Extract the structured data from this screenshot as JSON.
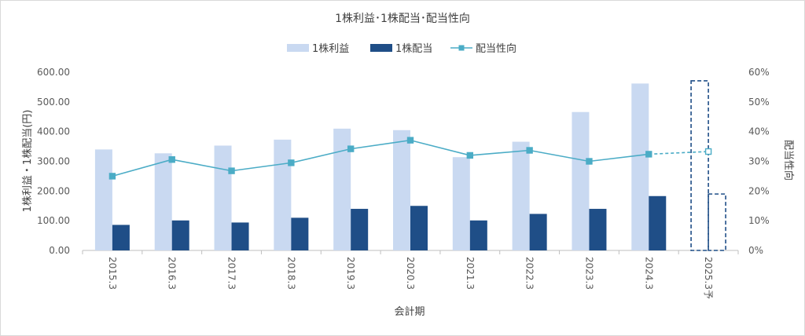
{
  "chart_data": {
    "type": "bar",
    "title": "1株利益･1株配当･配当性向",
    "xlabel": "会計期",
    "ylabel": "1株利益・1株配当(円)",
    "y2label": "配当性向",
    "categories": [
      "2015.3",
      "2016.3",
      "2017.3",
      "2018.3",
      "2019.3",
      "2020.3",
      "2021.3",
      "2022.3",
      "2023.3",
      "2024.3",
      "2025.3予"
    ],
    "ylim": [
      0,
      600
    ],
    "yticks": [
      "0.00",
      "100.00",
      "200.00",
      "300.00",
      "400.00",
      "500.00",
      "600.00"
    ],
    "y2lim": [
      0,
      60
    ],
    "y2ticks": [
      "0%",
      "10%",
      "20%",
      "30%",
      "40%",
      "50%",
      "60%"
    ],
    "series": [
      {
        "name": "1株利益",
        "kind": "bar",
        "color": "#c9d9f1",
        "values": [
          340,
          327,
          353,
          373,
          410,
          405,
          314,
          366,
          466,
          562,
          571
        ],
        "forecast_last": true
      },
      {
        "name": "1株配当",
        "kind": "bar",
        "color": "#1f4e87",
        "values": [
          86,
          101,
          94,
          110,
          140,
          150,
          101,
          123,
          140,
          183,
          190
        ],
        "forecast_last": true
      },
      {
        "name": "配当性向",
        "kind": "line",
        "axis": "right",
        "color": "#4bacc6",
        "values": [
          25,
          30.6,
          26.8,
          29.5,
          34.2,
          37.1,
          32,
          33.7,
          30,
          32.4,
          33.3
        ],
        "forecast_last": true
      }
    ],
    "legend_position": "top-center",
    "grid": false
  }
}
